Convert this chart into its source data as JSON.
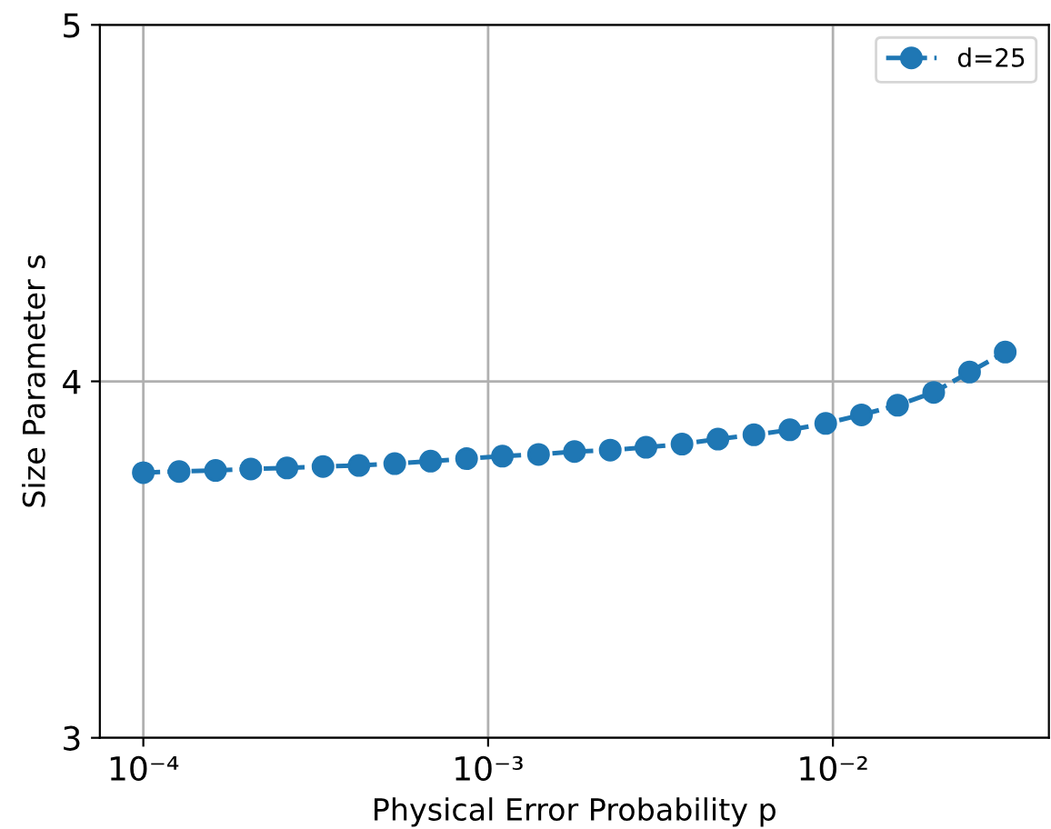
{
  "chart_data": {
    "type": "line",
    "xlabel": "Physical Error Probability p",
    "ylabel": "Size Parameter s",
    "x": [
      0.0001,
      0.000127,
      0.000162,
      0.000205,
      0.000261,
      0.000332,
      0.000422,
      0.000536,
      0.000681,
      0.000866,
      0.0011,
      0.0014,
      0.00178,
      0.00226,
      0.00287,
      0.00365,
      0.00464,
      0.0059,
      0.0075,
      0.00953,
      0.0121,
      0.0154,
      0.0196,
      0.0249,
      0.0316
    ],
    "series": [
      {
        "name": "d=25",
        "color": "#1f77b4",
        "values": [
          3.744,
          3.747,
          3.75,
          3.754,
          3.757,
          3.761,
          3.764,
          3.769,
          3.776,
          3.783,
          3.79,
          3.795,
          3.803,
          3.807,
          3.815,
          3.824,
          3.838,
          3.85,
          3.864,
          3.882,
          3.906,
          3.933,
          3.969,
          4.026,
          4.082
        ]
      }
    ],
    "log": "x",
    "xlim": [
      7.48e-05,
      0.0423
    ],
    "xticks": [
      {
        "value": 0.0001,
        "label": "10⁻⁴"
      },
      {
        "value": 0.001,
        "label": "10⁻³"
      },
      {
        "value": 0.01,
        "label": "10⁻²"
      }
    ],
    "ylim": [
      3,
      5
    ],
    "yticks": [
      3,
      4,
      5
    ],
    "grid": true,
    "legend": "top right",
    "marker": "circle",
    "line_style": "dashed"
  }
}
